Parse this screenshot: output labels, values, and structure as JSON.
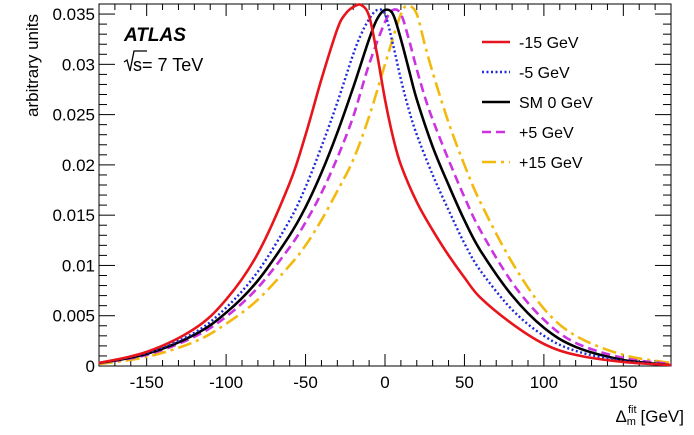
{
  "chart_data": {
    "type": "line",
    "title": "",
    "xlabel": "Δ",
    "xlabel_sub": "m",
    "xlabel_sup": "fit",
    "xlabel_unit": "[GeV]",
    "ylabel": "arbitrary units",
    "xlim": [
      -180,
      180
    ],
    "ylim": [
      0,
      0.036
    ],
    "xticks": [
      "-150",
      "-100",
      "-50",
      "0",
      "50",
      "100",
      "150"
    ],
    "yticks": [
      "0",
      "0.005",
      "0.01",
      "0.015",
      "0.02",
      "0.025",
      "0.03",
      "0.035"
    ],
    "grid": false,
    "legend_position": "top-right",
    "annotations": {
      "experiment": "ATLAS",
      "energy_prefix": "√s",
      "energy_value": "= 7 TeV"
    },
    "series": [
      {
        "name": "-15 GeV",
        "color": "#e8141b",
        "dash": "solid",
        "x": [
          -180,
          -150,
          -120,
          -100,
          -80,
          -60,
          -50,
          -40,
          -30,
          -25,
          -20,
          -15,
          -10,
          -5,
          0,
          5,
          10,
          20,
          30,
          40,
          50,
          60,
          80,
          100,
          120,
          150,
          180
        ],
        "y": [
          0.0003,
          0.0014,
          0.0037,
          0.0066,
          0.0112,
          0.0182,
          0.023,
          0.0285,
          0.0335,
          0.035,
          0.0357,
          0.0359,
          0.0348,
          0.031,
          0.0265,
          0.0228,
          0.02,
          0.0163,
          0.0135,
          0.011,
          0.0088,
          0.0068,
          0.0042,
          0.0022,
          0.0011,
          0.0004,
          0.0001
        ]
      },
      {
        "name": "-5 GeV",
        "color": "#1e28d8",
        "dash": "dotted",
        "x": [
          -180,
          -150,
          -120,
          -100,
          -80,
          -60,
          -50,
          -40,
          -30,
          -20,
          -15,
          -10,
          -5,
          0,
          5,
          10,
          15,
          20,
          30,
          40,
          50,
          60,
          80,
          100,
          120,
          150,
          180
        ],
        "y": [
          0.0003,
          0.0013,
          0.0033,
          0.0058,
          0.0094,
          0.0145,
          0.0178,
          0.0218,
          0.0262,
          0.031,
          0.033,
          0.0345,
          0.0354,
          0.035,
          0.032,
          0.0285,
          0.0255,
          0.023,
          0.019,
          0.0155,
          0.0122,
          0.0095,
          0.0056,
          0.003,
          0.0015,
          0.0005,
          0.0001
        ]
      },
      {
        "name": "SM 0 GeV",
        "color": "#000000",
        "dash": "solid",
        "x": [
          -180,
          -150,
          -120,
          -100,
          -80,
          -60,
          -50,
          -40,
          -30,
          -20,
          -10,
          -5,
          0,
          5,
          10,
          15,
          20,
          30,
          40,
          50,
          60,
          80,
          100,
          120,
          150,
          180
        ],
        "y": [
          0.0003,
          0.0012,
          0.0031,
          0.0053,
          0.0085,
          0.013,
          0.0158,
          0.0192,
          0.0232,
          0.0277,
          0.0325,
          0.0345,
          0.0354,
          0.035,
          0.0325,
          0.0295,
          0.0265,
          0.0218,
          0.018,
          0.0145,
          0.0115,
          0.007,
          0.0038,
          0.0019,
          0.0006,
          0.0001
        ]
      },
      {
        "name": "+5 GeV",
        "color": "#cc33e0",
        "dash": "dashed",
        "x": [
          -180,
          -150,
          -120,
          -100,
          -80,
          -60,
          -50,
          -40,
          -30,
          -20,
          -10,
          0,
          5,
          10,
          15,
          20,
          25,
          30,
          40,
          50,
          60,
          80,
          100,
          120,
          150,
          180
        ],
        "y": [
          0.0003,
          0.0011,
          0.0029,
          0.0049,
          0.0078,
          0.0118,
          0.0143,
          0.0172,
          0.0207,
          0.0248,
          0.03,
          0.0342,
          0.0354,
          0.035,
          0.0325,
          0.0295,
          0.0268,
          0.0245,
          0.0205,
          0.0168,
          0.0135,
          0.0083,
          0.0046,
          0.0023,
          0.0008,
          0.0002
        ]
      },
      {
        "name": "+15 GeV",
        "color": "#f2b90f",
        "dash": "dashdot",
        "x": [
          -180,
          -150,
          -120,
          -100,
          -80,
          -60,
          -50,
          -40,
          -30,
          -20,
          -10,
          0,
          10,
          15,
          20,
          25,
          30,
          40,
          50,
          60,
          80,
          100,
          120,
          150,
          180
        ],
        "y": [
          0.0002,
          0.0009,
          0.0024,
          0.0042,
          0.0066,
          0.01,
          0.012,
          0.0145,
          0.0174,
          0.0205,
          0.0248,
          0.03,
          0.035,
          0.0358,
          0.035,
          0.032,
          0.0292,
          0.0242,
          0.02,
          0.0163,
          0.0103,
          0.0057,
          0.003,
          0.0011,
          0.0003
        ]
      }
    ]
  }
}
